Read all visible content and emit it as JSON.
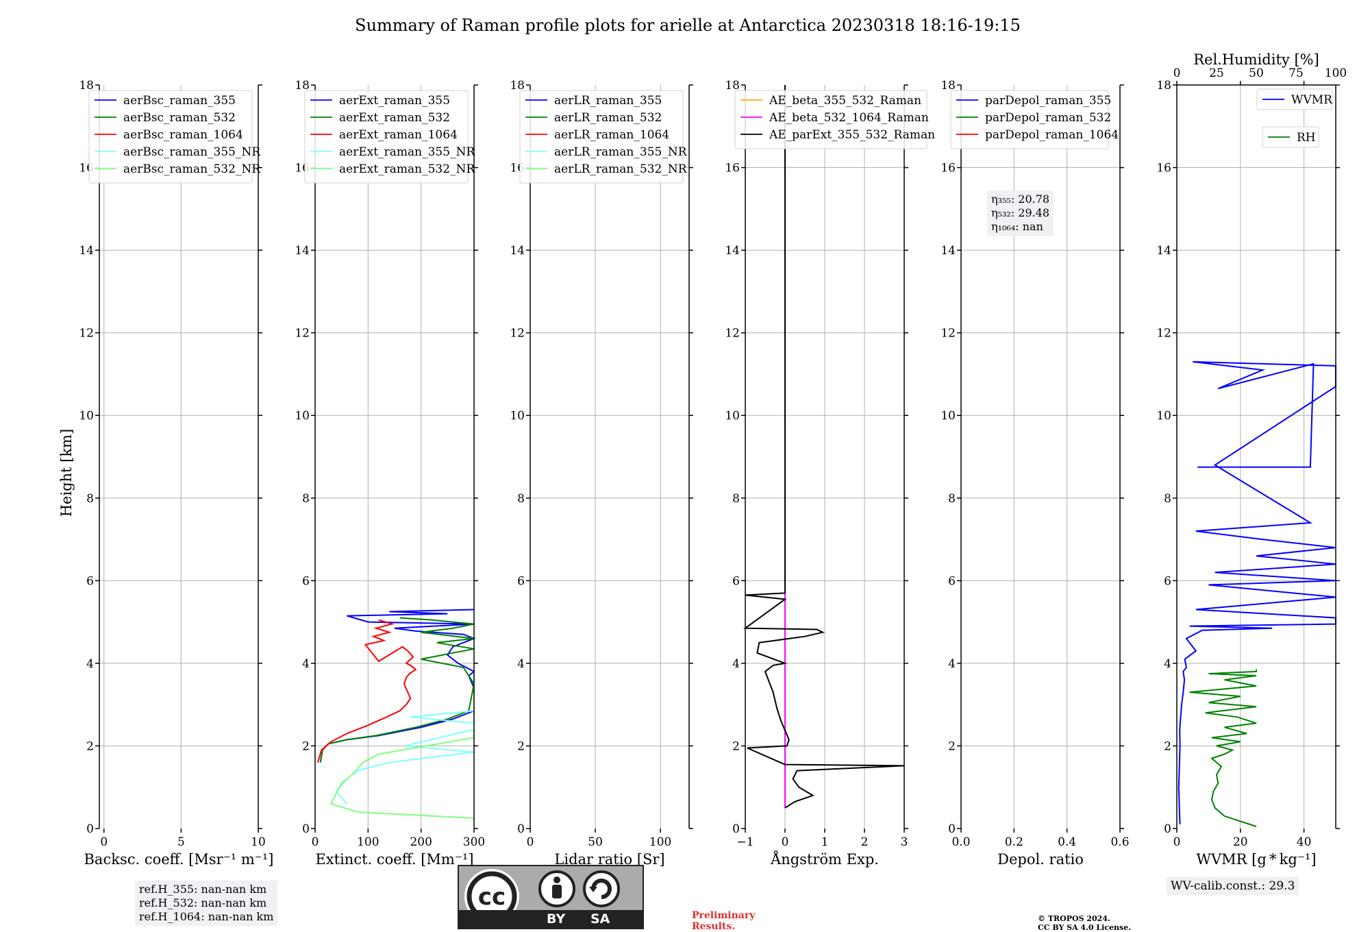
{
  "title": "Summary of Raman profile plots for arielle at Antarctica 20230318 18:16-19:15",
  "ylabel": "Height [km]",
  "panels": [
    {
      "id": "bsc",
      "xlabel": "Backsc. coeff. [Msr⁻¹ m⁻¹]",
      "xlim": [
        -0.3,
        10
      ],
      "xticks": [
        0,
        5,
        10
      ],
      "xticklabels": [
        "0",
        "5",
        "10"
      ],
      "legend": [
        {
          "label": "aerBsc_raman_355",
          "color": "#0000ff"
        },
        {
          "label": "aerBsc_raman_532",
          "color": "#008000"
        },
        {
          "label": "aerBsc_raman_1064",
          "color": "#ff0000"
        },
        {
          "label": "aerBsc_raman_355_NR",
          "color": "#80ffff"
        },
        {
          "label": "aerBsc_raman_532_NR",
          "color": "#80ff80"
        }
      ]
    },
    {
      "id": "ext",
      "xlabel": "Extinct. coeff. [Mm⁻¹]",
      "xlim": [
        0,
        300
      ],
      "xticks": [
        0,
        100,
        200,
        300
      ],
      "xticklabels": [
        "0",
        "100",
        "200",
        "300"
      ],
      "legend": [
        {
          "label": "aerExt_raman_355",
          "color": "#0000ff"
        },
        {
          "label": "aerExt_raman_532",
          "color": "#008000"
        },
        {
          "label": "aerExt_raman_1064",
          "color": "#ff0000"
        },
        {
          "label": "aerExt_raman_355_NR",
          "color": "#80ffff"
        },
        {
          "label": "aerExt_raman_532_NR",
          "color": "#80ff80"
        }
      ]
    },
    {
      "id": "lr",
      "xlabel": "Lidar ratio [Sr]",
      "xlim": [
        0,
        122
      ],
      "xticks": [
        0,
        50,
        100
      ],
      "xticklabels": [
        "0",
        "50",
        "100"
      ],
      "legend": [
        {
          "label": "aerLR_raman_355",
          "color": "#0000ff"
        },
        {
          "label": "aerLR_raman_532",
          "color": "#008000"
        },
        {
          "label": "aerLR_raman_1064",
          "color": "#ff0000"
        },
        {
          "label": "aerLR_raman_355_NR",
          "color": "#80ffff"
        },
        {
          "label": "aerLR_raman_532_NR",
          "color": "#80ff80"
        }
      ]
    },
    {
      "id": "ae",
      "xlabel": "Ångström Exp.",
      "xlim": [
        -1,
        3
      ],
      "xticks": [
        -1,
        0,
        1,
        2,
        3
      ],
      "xticklabels": [
        "−1",
        "0",
        "1",
        "2",
        "3"
      ],
      "legend": [
        {
          "label": "AE_beta_355_532_Raman",
          "color": "#ffa500"
        },
        {
          "label": "AE_beta_532_1064_Raman",
          "color": "#ff00ff"
        },
        {
          "label": "AE_parExt_355_532_Raman",
          "color": "#000000"
        }
      ]
    },
    {
      "id": "depol",
      "xlabel": "Depol. ratio",
      "xlim": [
        0,
        0.6
      ],
      "xticks": [
        0,
        0.2,
        0.4,
        0.6
      ],
      "xticklabels": [
        "0.0",
        "0.2",
        "0.4",
        "0.6"
      ],
      "legend": [
        {
          "label": "parDepol_raman_355",
          "color": "#0000ff"
        },
        {
          "label": "parDepol_raman_532",
          "color": "#008000"
        },
        {
          "label": "parDepol_raman_1064",
          "color": "#ff0000"
        }
      ]
    },
    {
      "id": "wv",
      "xlabel": "WVMR [g * kg⁻¹]",
      "xlim": [
        0,
        50
      ],
      "xticks": [
        0,
        20,
        40
      ],
      "xticklabels": [
        "0",
        "20",
        "40"
      ],
      "toplabel": "Rel.Humidity [%]",
      "toplim": [
        0,
        100
      ],
      "topticks": [
        0,
        25,
        50,
        75,
        100
      ],
      "topticklabels": [
        "0",
        "25",
        "50",
        "75",
        "100"
      ],
      "legend": [
        {
          "label": "WVMR",
          "color": "#0000ff"
        },
        {
          "label": "RH",
          "color": "#008000"
        }
      ]
    }
  ],
  "yticks": [
    0,
    2,
    4,
    6,
    8,
    10,
    12,
    14,
    16,
    18
  ],
  "ylim": [
    0,
    18
  ],
  "eta_box": {
    "eta355": "η₃₅₅: 20.78",
    "eta532": "η₅₃₂: 29.48",
    "eta1064": "η₁₀₆₄: nan"
  },
  "refh_box": {
    "l1": "ref.H_355: nan-nan km",
    "l2": "ref.H_532: nan-nan km",
    "l3": "ref.H_1064: nan-nan km"
  },
  "wv_calib": "WV-calib.const.: 29.3",
  "preliminary": {
    "l1": "Preliminary",
    "l2": "Results."
  },
  "copyright": {
    "l1": "© TROPOS 2024.",
    "l2": "CC BY SA 4.0 License."
  },
  "cc_badge": {
    "cc": "cc",
    "by": "BY",
    "sa": "SA"
  },
  "chart_data": [
    {
      "type": "line",
      "title": "Summary of Raman profile plots for arielle at Antarctica 20230318 18:16-19:15",
      "panel": "ext",
      "xlabel": "Extinct. coeff. [Mm⁻¹]",
      "ylabel": "Height [km]",
      "xlim": [
        0,
        300
      ],
      "ylim": [
        0,
        18
      ],
      "series": [
        {
          "name": "aerExt_raman_355",
          "color": "#0000ff",
          "x": [
            10,
            14,
            25,
            60,
            120,
            200,
            260,
            300,
            300,
            290,
            300,
            270,
            250,
            260,
            300,
            280,
            190,
            150,
            300,
            100,
            60,
            250,
            140,
            300
          ],
          "y": [
            1.6,
            1.9,
            2.05,
            2.15,
            2.25,
            2.45,
            2.65,
            2.85,
            3.4,
            3.7,
            3.8,
            4.0,
            4.2,
            4.4,
            4.6,
            4.7,
            4.78,
            4.85,
            4.95,
            5.0,
            5.15,
            5.2,
            5.25,
            5.3
          ]
        },
        {
          "name": "aerExt_raman_532",
          "color": "#008000",
          "x": [
            10,
            14,
            25,
            60,
            115,
            190,
            250,
            290,
            300,
            280,
            200,
            260,
            300,
            230,
            300,
            200,
            260,
            300,
            220,
            160
          ],
          "y": [
            1.6,
            1.9,
            2.05,
            2.15,
            2.25,
            2.45,
            2.65,
            2.85,
            3.5,
            3.9,
            4.1,
            4.25,
            4.35,
            4.5,
            4.6,
            4.75,
            4.85,
            4.95,
            5.05,
            5.1
          ]
        },
        {
          "name": "aerExt_raman_1064",
          "color": "#ff0000",
          "x": [
            5,
            12,
            30,
            60,
            100,
            135,
            160,
            172,
            180,
            175,
            168,
            172,
            178,
            190,
            180,
            172,
            185,
            175,
            165,
            120,
            95,
            130,
            110,
            140,
            115,
            145,
            120
          ],
          "y": [
            1.6,
            1.9,
            2.1,
            2.3,
            2.5,
            2.7,
            2.85,
            3.0,
            3.15,
            3.3,
            3.5,
            3.65,
            3.75,
            3.85,
            3.95,
            4.0,
            4.15,
            4.3,
            4.4,
            4.05,
            4.45,
            4.55,
            4.65,
            4.75,
            4.85,
            4.95,
            5.05
          ]
        },
        {
          "name": "aerExt_raman_355_NR",
          "color": "#80ffff",
          "x": [
            300,
            300,
            300,
            300,
            300,
            300,
            300,
            300,
            180,
            300,
            300,
            170,
            300,
            140,
            80,
            60,
            40,
            60
          ],
          "y": [
            3.9,
            3.75,
            3.6,
            3.45,
            3.3,
            3.15,
            3.0,
            2.85,
            2.7,
            2.55,
            2.4,
            2.0,
            1.85,
            1.6,
            1.4,
            1.2,
            0.9,
            0.6
          ]
        },
        {
          "name": "aerExt_raman_532_NR",
          "color": "#80ff80",
          "x": [
            300,
            300,
            300,
            300,
            300,
            300,
            300,
            300,
            300,
            300,
            300,
            120,
            90,
            70,
            50,
            40,
            30,
            80,
            300,
            300
          ],
          "y": [
            3.85,
            3.7,
            3.55,
            3.4,
            3.25,
            3.1,
            2.95,
            2.8,
            2.6,
            2.45,
            2.2,
            1.8,
            1.6,
            1.3,
            1.1,
            0.85,
            0.6,
            0.4,
            0.25,
            0.2
          ]
        }
      ]
    },
    {
      "type": "line",
      "panel": "ae",
      "xlabel": "Ångström Exp.",
      "xlim": [
        -1,
        3
      ],
      "ylim": [
        0,
        18
      ],
      "series": [
        {
          "name": "AE_beta_532_1064_Raman",
          "color": "#ff00ff",
          "x": [
            0,
            0
          ],
          "y": [
            0.5,
            5.7
          ]
        },
        {
          "name": "AE_parExt_355_532_Raman",
          "color": "#000000",
          "x": [
            0.0,
            0.25,
            0.7,
            0.35,
            0.2,
            0.3,
            3.0,
            0.0,
            -0.95,
            0.05,
            0.1,
            -0.1,
            -0.2,
            -0.3,
            -0.5,
            -0.3,
            0.0,
            -0.7,
            -0.65,
            0.5,
            0.95,
            0.8,
            -1.0,
            0.0,
            -1.0,
            0.0,
            0.0
          ],
          "y": [
            0.5,
            0.65,
            0.8,
            1.0,
            1.2,
            1.4,
            1.52,
            1.55,
            1.95,
            2.0,
            2.15,
            2.6,
            2.9,
            3.3,
            3.8,
            3.95,
            4.0,
            4.25,
            4.5,
            4.65,
            4.75,
            4.82,
            4.85,
            5.55,
            5.65,
            5.7,
            18.0
          ]
        }
      ]
    },
    {
      "type": "line",
      "panel": "wv",
      "xlabel": "WVMR [g * kg⁻¹]",
      "x2label": "Rel.Humidity [%]",
      "xlim": [
        0,
        50
      ],
      "x2lim": [
        0,
        100
      ],
      "ylim": [
        0,
        18
      ],
      "series": [
        {
          "name": "WVMR",
          "color": "#0000ff",
          "x": [
            1.0,
            0.8,
            0.6,
            0.8,
            1.0,
            0.9,
            1.2,
            1.5,
            2.0,
            2.4,
            2.0,
            3.0,
            2.5,
            6.0,
            3.0,
            8.0,
            30.0,
            4.0,
            50.0,
            50.0,
            6.0,
            50.0,
            10.0,
            50.0,
            12.0,
            50.0,
            25.0,
            50.0,
            27.0,
            6.0,
            42.0,
            12.0,
            50.0,
            50.0,
            5.0,
            27.0,
            13.0,
            43.0,
            42.0,
            6.5
          ],
          "y": [
            0.1,
            0.5,
            1.0,
            1.5,
            2.0,
            2.4,
            2.7,
            3.0,
            3.3,
            3.6,
            3.8,
            3.9,
            4.1,
            4.3,
            4.6,
            4.8,
            4.85,
            4.9,
            4.95,
            5.1,
            5.3,
            5.6,
            5.9,
            6.0,
            6.2,
            6.4,
            6.6,
            6.8,
            7.0,
            7.2,
            7.4,
            8.8,
            10.7,
            11.2,
            11.3,
            11.1,
            10.65,
            11.25,
            8.75,
            8.75
          ]
        },
        {
          "name": "RH",
          "color": "#008000",
          "x": [
            50,
            30,
            24,
            22,
            23,
            26,
            25,
            28,
            22,
            30,
            35,
            25,
            40,
            22,
            44,
            30,
            50,
            38,
            18,
            50,
            20,
            40,
            8,
            50,
            30,
            50,
            20,
            50,
            50
          ],
          "y": [
            0.05,
            0.3,
            0.5,
            0.7,
            0.9,
            1.1,
            1.3,
            1.5,
            1.7,
            1.8,
            1.9,
            2.0,
            2.1,
            2.2,
            2.3,
            2.45,
            2.55,
            2.7,
            2.8,
            2.95,
            3.05,
            3.2,
            3.3,
            3.45,
            3.6,
            3.7,
            3.75,
            3.8,
            3.85
          ]
        }
      ]
    }
  ]
}
